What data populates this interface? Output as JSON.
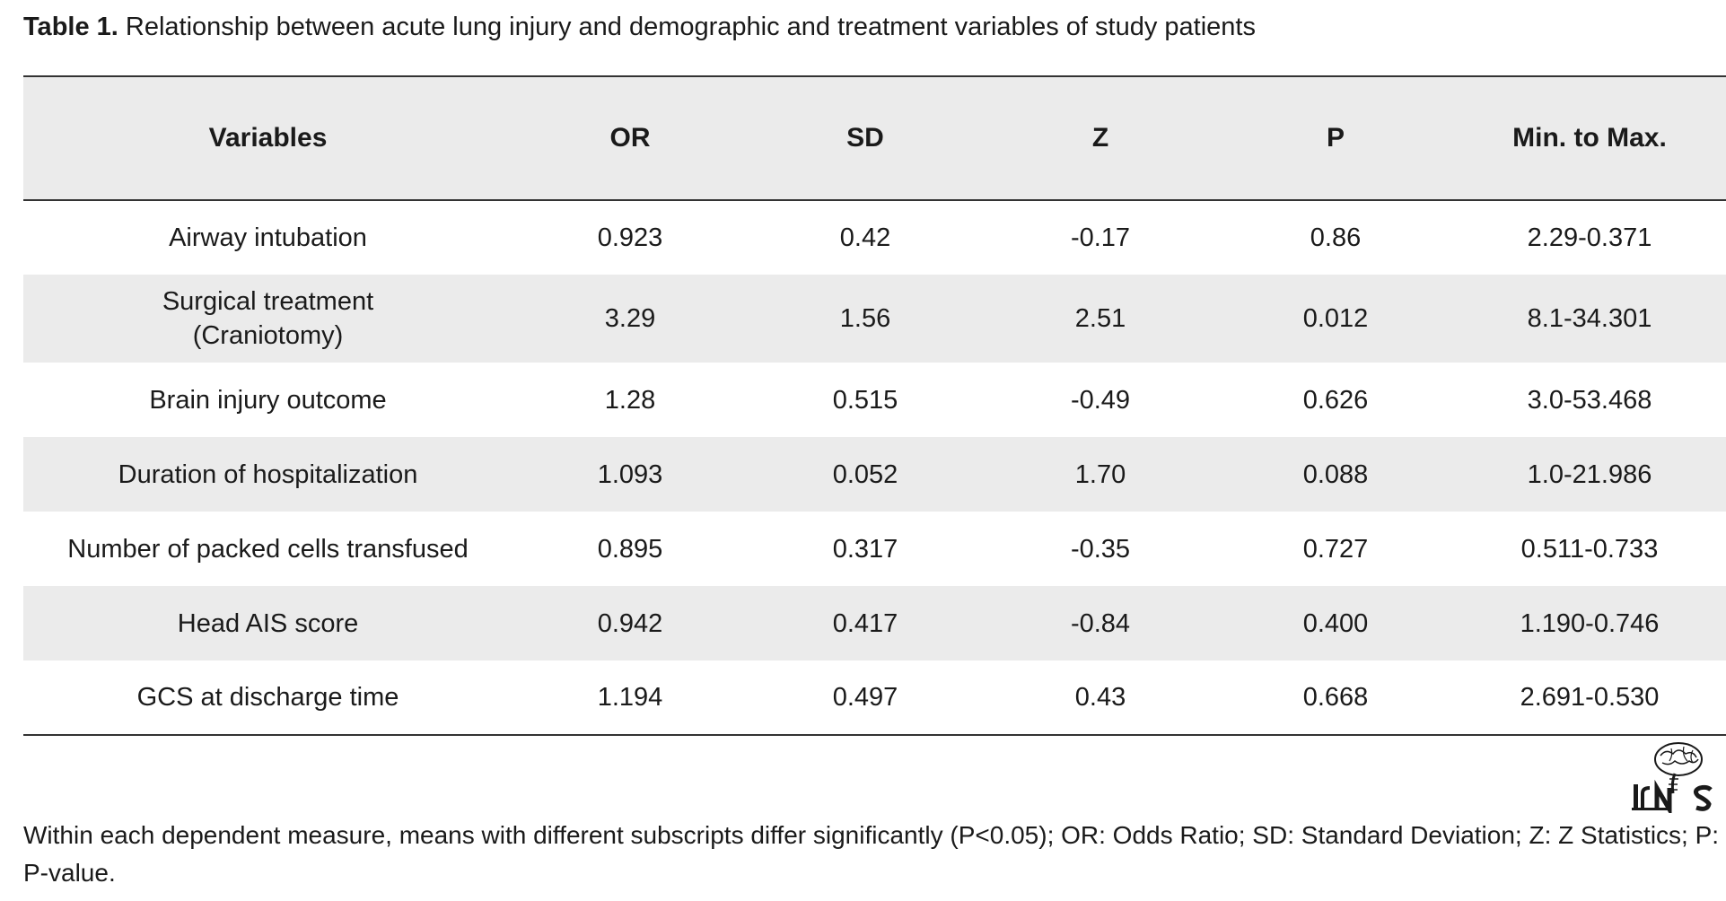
{
  "caption": {
    "label": "Table 1.",
    "text": "Relationship between acute lung injury and demographic and treatment variables of study patients"
  },
  "table": {
    "headers": [
      "Variables",
      "OR",
      "SD",
      "Z",
      "P",
      "Min. to Max."
    ],
    "rows": [
      [
        "Airway intubation",
        "0.923",
        "0.42",
        "-0.17",
        "0.86",
        "2.29-0.371"
      ],
      [
        "Surgical treatment\n(Craniotomy)",
        "3.29",
        "1.56",
        "2.51",
        "0.012",
        "8.1-34.301"
      ],
      [
        "Brain injury outcome",
        "1.28",
        "0.515",
        "-0.49",
        "0.626",
        "3.0-53.468"
      ],
      [
        "Duration of hospitalization",
        "1.093",
        "0.052",
        "1.70",
        "0.088",
        "1.0-21.986"
      ],
      [
        "Number of packed cells transfused",
        "0.895",
        "0.317",
        "-0.35",
        "0.727",
        "0.511-0.733"
      ],
      [
        "Head AIS score",
        "0.942",
        "0.417",
        "-0.84",
        "0.400",
        "1.190-0.746"
      ],
      [
        "GCS at discharge time",
        "1.194",
        "0.497",
        "0.43",
        "0.668",
        "2.691-0.530"
      ]
    ]
  },
  "logo": {
    "text": "IrNS",
    "icon": "brain-logo-icon"
  },
  "footnote": "Within each dependent measure, means with different subscripts differ significantly (P<0.05); OR: Odds Ratio; SD: Standard Deviation; Z: Z Statistics; P: P-value.",
  "colors": {
    "header_bg": "#ebebeb",
    "shaded_row_bg": "#ebebeb",
    "rule": "#333333",
    "text": "#1a1a1a"
  }
}
